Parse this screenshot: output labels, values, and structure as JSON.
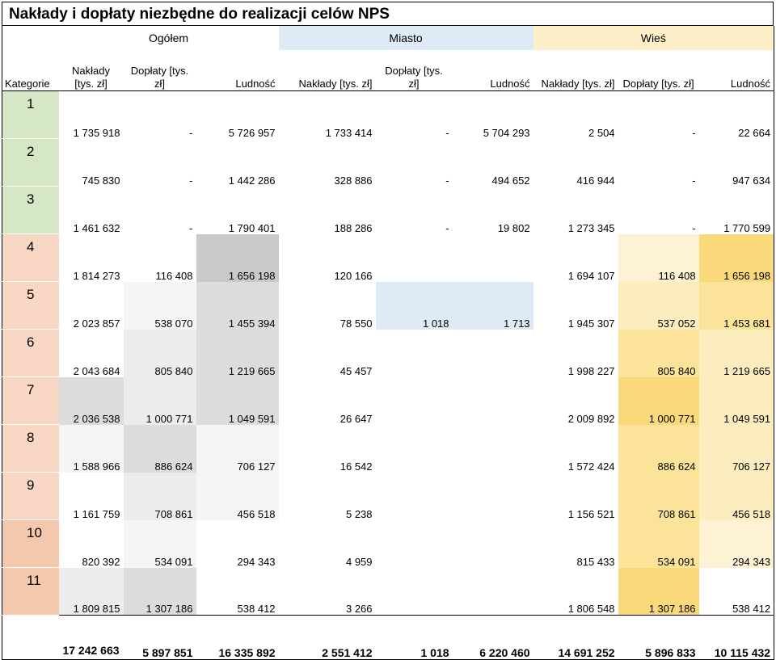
{
  "title": "Nakłady i dopłaty niezbędne do realizacji celów NPS",
  "groups": {
    "ogolem": "Ogółem",
    "miasto": "Miasto",
    "wies": "Wieś"
  },
  "headers": {
    "kategoria": "Kategorie",
    "naklady": "Nakłady [tys. zł]",
    "doplaty": "Dopłaty [tys. zł]",
    "ludnosc": "Ludność"
  },
  "rows": [
    {
      "k": "1",
      "v": [
        "1 735 918",
        "-",
        "5 726 957",
        "1 733 414",
        "-",
        "5 704 293",
        "2 504",
        "-",
        "22 664"
      ]
    },
    {
      "k": "2",
      "v": [
        "745 830",
        "-",
        "1 442 286",
        "328 886",
        "-",
        "494 652",
        "416 944",
        "-",
        "947 634"
      ]
    },
    {
      "k": "3",
      "v": [
        "1 461 632",
        "-",
        "1 790 401",
        "188 286",
        "-",
        "19 802",
        "1 273 345",
        "-",
        "1 770 599"
      ]
    },
    {
      "k": "4",
      "v": [
        "1 814 273",
        "116 408",
        "1 656 198",
        "120 166",
        "",
        "",
        "1 694 107",
        "116 408",
        "1 656 198"
      ]
    },
    {
      "k": "5",
      "v": [
        "2 023 857",
        "538 070",
        "1 455 394",
        "78 550",
        "1 018",
        "1 713",
        "1 945 307",
        "537 052",
        "1 453 681"
      ]
    },
    {
      "k": "6",
      "v": [
        "2 043 684",
        "805 840",
        "1 219 665",
        "45 457",
        "",
        "",
        "1 998 227",
        "805 840",
        "1 219 665"
      ]
    },
    {
      "k": "7",
      "v": [
        "2 036 538",
        "1 000 771",
        "1 049 591",
        "26 647",
        "",
        "",
        "2 009 892",
        "1 000 771",
        "1 049 591"
      ]
    },
    {
      "k": "8",
      "v": [
        "1 588 966",
        "886 624",
        "706 127",
        "16 542",
        "",
        "",
        "1 572 424",
        "886 624",
        "706 127"
      ]
    },
    {
      "k": "9",
      "v": [
        "1 161 759",
        "708 861",
        "456 518",
        "5 238",
        "",
        "",
        "1 156 521",
        "708 861",
        "456 518"
      ]
    },
    {
      "k": "10",
      "v": [
        "820 392",
        "534 091",
        "294 343",
        "4 959",
        "",
        "",
        "815 433",
        "534 091",
        "294 343"
      ]
    },
    {
      "k": "11",
      "v": [
        "1 809 815",
        "1 307 186",
        "538 412",
        "3 266",
        "",
        "",
        "1 806 548",
        "1 307 186",
        "538 412"
      ]
    }
  ],
  "totals": [
    "17 242 663",
    "5 897 851",
    "16 335 892",
    "2 551 412",
    "1 018",
    "6 220 460",
    "14 691 252",
    "5 896 833",
    "10 115 432"
  ]
}
